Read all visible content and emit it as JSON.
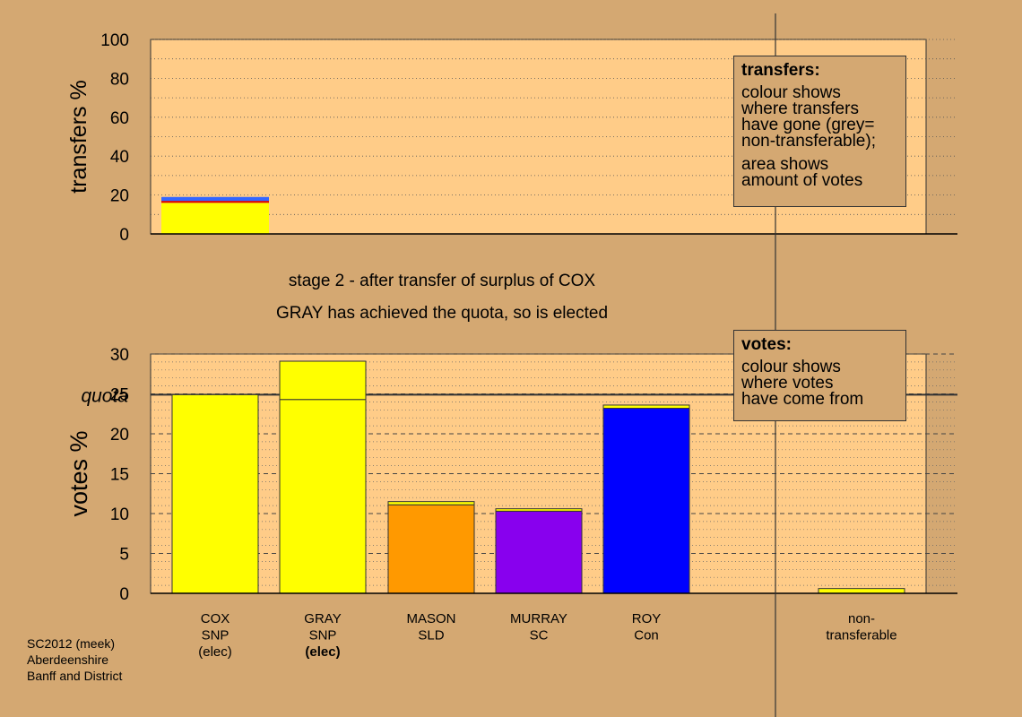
{
  "caption": {
    "line1": "stage 2 - after transfer of surplus of COX",
    "line2": "GRAY has achieved the quota, so is elected"
  },
  "transfers_legend": {
    "title": "transfers:",
    "lines": [
      "colour shows",
      "where transfers",
      "have gone (grey=",
      "non-transferable);",
      "area shows",
      "amount of votes"
    ]
  },
  "votes_legend": {
    "title": "votes:",
    "lines": [
      "colour shows",
      "where votes",
      "have come from"
    ]
  },
  "footer": {
    "lines": [
      "SC2012 (meek)",
      "Aberdeenshire",
      "Banff and District"
    ]
  },
  "colors": {
    "background": "#D4A872",
    "plot": "#FFCC88",
    "SNP": "#FFFF00",
    "SLD": "#FF9900",
    "SC": "#8800EE",
    "Con": "#0000FF",
    "transfer_red": "#DD0000",
    "transfer_blue": "#3366FF"
  },
  "chart_data": [
    {
      "type": "bar",
      "stacked": true,
      "ylabel": "transfers %",
      "ylim": [
        0,
        100
      ],
      "yticks": [
        0,
        20,
        40,
        60,
        80,
        100
      ],
      "categories": [
        "COX"
      ],
      "series": [
        {
          "color": "yellow",
          "values": [
            16
          ]
        },
        {
          "color": "red",
          "values": [
            1
          ]
        },
        {
          "color": "blue",
          "values": [
            2
          ]
        }
      ],
      "grid": "dotted"
    },
    {
      "type": "bar",
      "stacked": true,
      "ylabel": "votes %",
      "ylim": [
        0,
        30
      ],
      "yticks": [
        0,
        5,
        10,
        15,
        20,
        25,
        30
      ],
      "quota": 24.9,
      "quota_label": "quota",
      "categories": [
        {
          "lines": [
            "COX",
            "SNP",
            "(elec)"
          ],
          "bold_last": false
        },
        {
          "lines": [
            "GRAY",
            "SNP",
            "(elec)"
          ],
          "bold_last": true
        },
        {
          "lines": [
            "MASON",
            "SLD"
          ],
          "bold_last": false
        },
        {
          "lines": [
            "MURRAY",
            "SC"
          ],
          "bold_last": false
        },
        {
          "lines": [
            "ROY",
            "Con"
          ],
          "bold_last": false
        },
        {
          "lines": [
            "non-",
            "transferable"
          ],
          "bold_last": false
        }
      ],
      "bars": [
        {
          "segments": [
            {
              "value": 24.9,
              "color": "SNP"
            }
          ]
        },
        {
          "segments": [
            {
              "value": 24.3,
              "color": "SNP"
            },
            {
              "value": 4.8,
              "color": "SNP"
            }
          ]
        },
        {
          "segments": [
            {
              "value": 11.1,
              "color": "SLD"
            },
            {
              "value": 0.4,
              "color": "SNP"
            }
          ]
        },
        {
          "segments": [
            {
              "value": 10.3,
              "color": "SC"
            },
            {
              "value": 0.3,
              "color": "SNP"
            }
          ]
        },
        {
          "segments": [
            {
              "value": 23.2,
              "color": "Con"
            },
            {
              "value": 0.4,
              "color": "SNP"
            }
          ]
        },
        {
          "segments": [
            {
              "value": 0.6,
              "color": "SNP"
            }
          ]
        }
      ],
      "grid": "dashed"
    }
  ]
}
